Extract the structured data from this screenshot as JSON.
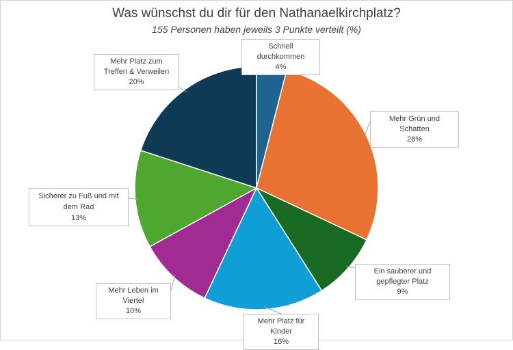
{
  "chart_data": {
    "type": "pie",
    "title": "Was wünschst du dir für den Nathanaelkirchplatz?",
    "subtitle": "155 Personen haben jeweils 3 Punkte verteilt (%)",
    "unit": "%",
    "slices": [
      {
        "label": "Schnell durchkommen",
        "value": 4,
        "value_label": "4%",
        "color": "#1f6391"
      },
      {
        "label": "Mehr Grün und Schatten",
        "value": 28,
        "value_label": "28%",
        "color": "#e97132"
      },
      {
        "label": "Ein sauberer und gepflegter Platz",
        "value": 9,
        "value_label": "9%",
        "color": "#196b24"
      },
      {
        "label": "Mehr Platz für Kinder",
        "value": 16,
        "value_label": "16%",
        "color": "#0f9ed5"
      },
      {
        "label": "Mehr Leben im Viertel",
        "value": 10,
        "value_label": "10%",
        "color": "#a02b93"
      },
      {
        "label": "Sicherer zu Fuß und mit dem Rad",
        "value": 13,
        "value_label": "13%",
        "color": "#4ea72e"
      },
      {
        "label": "Mehr Platz zum Treffen & Verweilen",
        "value": 20,
        "value_label": "20%",
        "color": "#0e3a56"
      }
    ]
  }
}
